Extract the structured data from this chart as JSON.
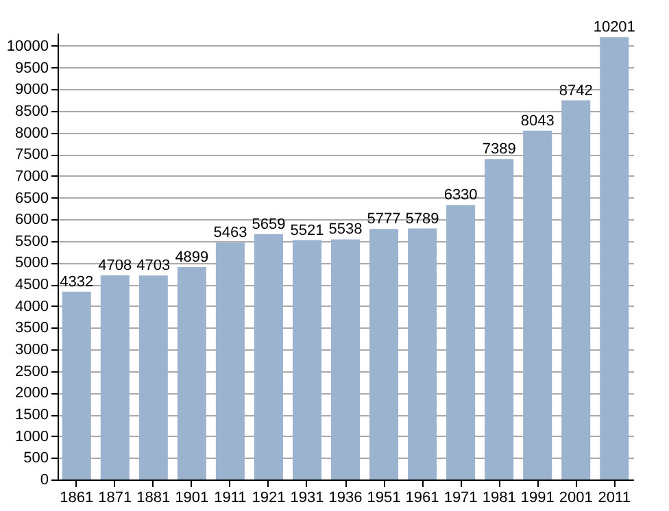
{
  "chart_data": {
    "type": "bar",
    "categories": [
      "1861",
      "1871",
      "1881",
      "1901",
      "1911",
      "1921",
      "1931",
      "1936",
      "1951",
      "1961",
      "1971",
      "1981",
      "1991",
      "2001",
      "2011"
    ],
    "values": [
      4332,
      4708,
      4703,
      4899,
      5463,
      5659,
      5521,
      5538,
      5777,
      5789,
      6330,
      7389,
      8043,
      8742,
      10201
    ],
    "color": "#9bb3cf",
    "ylim": [
      0,
      10300
    ],
    "yticks": [
      0,
      500,
      1000,
      1500,
      2000,
      2500,
      3000,
      3500,
      4000,
      4500,
      5000,
      5500,
      6000,
      6500,
      7000,
      7500,
      8000,
      8500,
      9000,
      9500,
      10000
    ],
    "grid": "y",
    "data_labels": true
  }
}
